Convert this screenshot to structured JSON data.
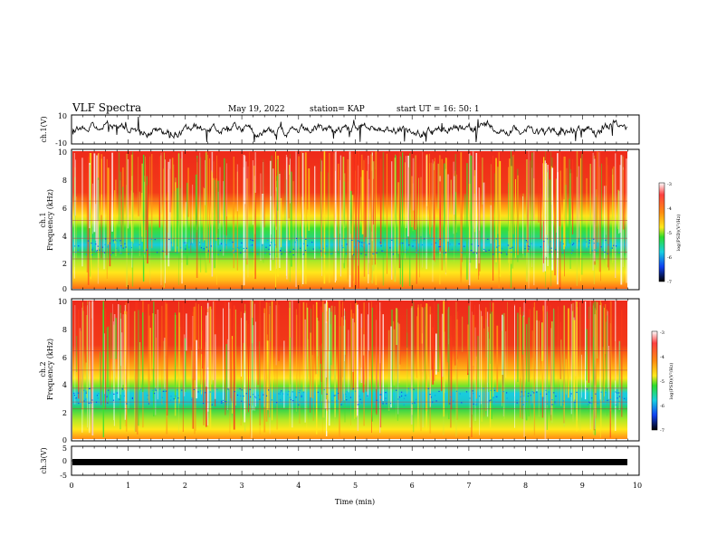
{
  "header": {
    "title": "VLF Spectra",
    "date": "May 19, 2022",
    "station": "station= KAP",
    "start": "start  UT  =   16: 50: 1"
  },
  "chart_data": [
    {
      "type": "line",
      "panel": "ch1-waveform",
      "ylabel": "ch.1(V)",
      "ylim": [
        -10,
        10
      ],
      "yticks": [
        "10",
        "-10"
      ],
      "xlim": [
        0,
        10
      ]
    },
    {
      "type": "heatmap",
      "panel": "ch1-spectrogram",
      "ylabel_top": "ch.1",
      "ylabel": "Frequency  (kHz)",
      "ylim": [
        0,
        10
      ],
      "yticks": [
        "0",
        "2",
        "4",
        "6",
        "8",
        "10"
      ],
      "xlim": [
        0,
        10
      ],
      "colorbar": {
        "label": "log(PSD)(V²/Hz)",
        "range": [
          -7,
          -3
        ],
        "ticks": [
          "-3",
          "-4",
          "-5",
          "-6",
          "-7"
        ]
      }
    },
    {
      "type": "heatmap",
      "panel": "ch2-spectrogram",
      "ylabel_top": "ch.2",
      "ylabel": "Frequency  (kHz)",
      "ylim": [
        0,
        10
      ],
      "yticks": [
        "0",
        "2",
        "4",
        "6",
        "8",
        "10"
      ],
      "xlim": [
        0,
        10
      ],
      "colorbar": {
        "label": "log(PSD)(V²/Hz)",
        "range": [
          -7,
          -3
        ],
        "ticks": [
          "-3",
          "-4",
          "-5",
          "-6",
          "-7"
        ]
      }
    },
    {
      "type": "line",
      "panel": "ch3-waveform",
      "ylabel": "ch.3(V)",
      "ylim": [
        -5,
        5
      ],
      "yticks": [
        "5",
        "0",
        "-5"
      ],
      "xlim": [
        0,
        10
      ]
    }
  ],
  "xaxis": {
    "label": "Time  (min)",
    "ticks": [
      "0",
      "1",
      "2",
      "3",
      "4",
      "5",
      "6",
      "7",
      "8",
      "9",
      "10"
    ]
  },
  "colors": {
    "red": "#ee2a1a",
    "orange": "#ff8c10",
    "yellow": "#ffe81a",
    "green": "#2cdc2c",
    "cyan": "#18d0e0",
    "blue": "#1040f0",
    "black": "#000000"
  }
}
